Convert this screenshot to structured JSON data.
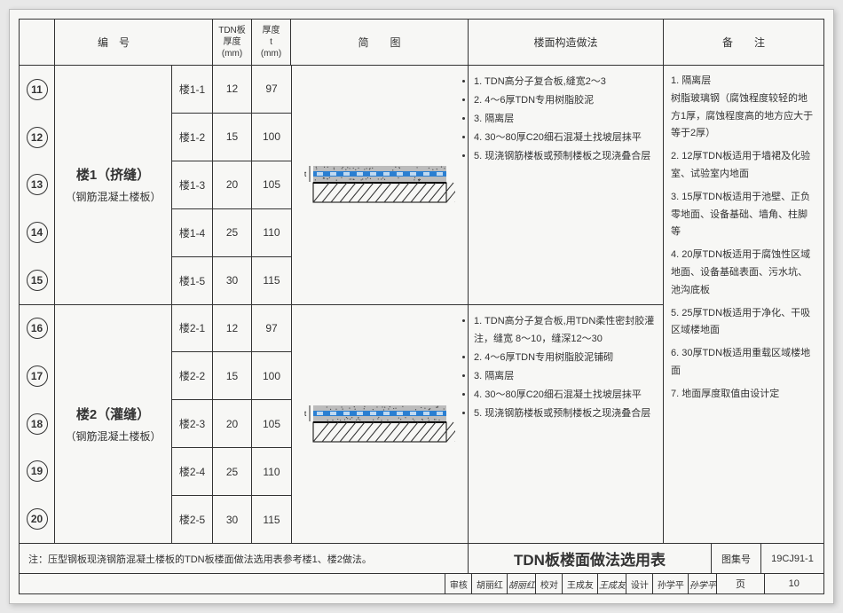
{
  "header": {
    "col_id": "编　号",
    "col_tdn": "TDN板\n厚度\n(mm)",
    "col_thk": "厚度\nt\n(mm)",
    "col_diagram": "简　　图",
    "col_method": "楼面构造做法",
    "col_remark": "备　　注"
  },
  "groups": [
    {
      "title": "楼1（挤缝）",
      "subtitle": "（钢筋混凝土楼板）",
      "rows": [
        {
          "id": "11",
          "sub": "楼1-1",
          "tdn": "12",
          "thk": "97"
        },
        {
          "id": "12",
          "sub": "楼1-2",
          "tdn": "15",
          "thk": "100"
        },
        {
          "id": "13",
          "sub": "楼1-3",
          "tdn": "20",
          "thk": "105"
        },
        {
          "id": "14",
          "sub": "楼1-4",
          "tdn": "25",
          "thk": "110"
        },
        {
          "id": "15",
          "sub": "楼1-5",
          "tdn": "30",
          "thk": "115"
        }
      ],
      "method": [
        "1. TDN高分子复合板,缝宽2～3",
        "2. 4～6厚TDN专用树脂胶泥",
        "3. 隔离层",
        "4. 30～80厚C20细石混凝土找坡层抹平",
        "5. 现浇钢筋楼板或预制楼板之现浇叠合层"
      ]
    },
    {
      "title": "楼2（灌缝）",
      "subtitle": "（钢筋混凝土楼板）",
      "rows": [
        {
          "id": "16",
          "sub": "楼2-1",
          "tdn": "12",
          "thk": "97"
        },
        {
          "id": "17",
          "sub": "楼2-2",
          "tdn": "15",
          "thk": "100"
        },
        {
          "id": "18",
          "sub": "楼2-3",
          "tdn": "20",
          "thk": "105"
        },
        {
          "id": "19",
          "sub": "楼2-4",
          "tdn": "25",
          "thk": "110"
        },
        {
          "id": "20",
          "sub": "楼2-5",
          "tdn": "30",
          "thk": "115"
        }
      ],
      "method": [
        "1. TDN高分子复合板,用TDN柔性密封胶灌注，缝宽 8～10，缝深12～30",
        "2. 4～6厚TDN专用树脂胶泥铺砌",
        "3. 隔离层",
        "4. 30～80厚C20细石混凝土找坡层抹平",
        "5. 现浇钢筋楼板或预制楼板之现浇叠合层"
      ]
    }
  ],
  "remarks": [
    "1. 隔离层\n树脂玻璃钢（腐蚀程度较轻的地方1厚，腐蚀程度高的地方应大于等于2厚）",
    "2. 12厚TDN板适用于墙裙及化验室、试验室内地面",
    "3. 15厚TDN板适用于池壁、正负零地面、设备基础、墙角、柱脚等",
    "4. 20厚TDN板适用于腐蚀性区域地面、设备基础表面、污水坑、池沟底板",
    "5. 25厚TDN板适用于净化、干吸区域楼地面",
    "6. 30厚TDN板适用重载区域楼地面",
    "7. 地面厚度取值由设计定"
  ],
  "footer": {
    "note": "注：压型钢板现浇钢筋混凝土楼板的TDN板楼面做法选用表参考楼1、楼2做法。",
    "title": "TDN板楼面做法选用表",
    "set_label": "图集号",
    "set_no": "19CJ91-1",
    "page_label": "页",
    "page_no": "10",
    "approvals": [
      {
        "lab": "审核",
        "name": "胡丽红",
        "sig": "胡丽红"
      },
      {
        "lab": "校对",
        "name": "王成友",
        "sig": "王成友"
      },
      {
        "lab": "设计",
        "name": "孙学平",
        "sig": "孙学平"
      }
    ]
  },
  "diagram": {
    "top_color": "#bcbcbc",
    "blue_color": "#2b7fd1",
    "hatch_color": "#333333",
    "dot_color": "#444444",
    "bg": "#f7f7f5"
  }
}
